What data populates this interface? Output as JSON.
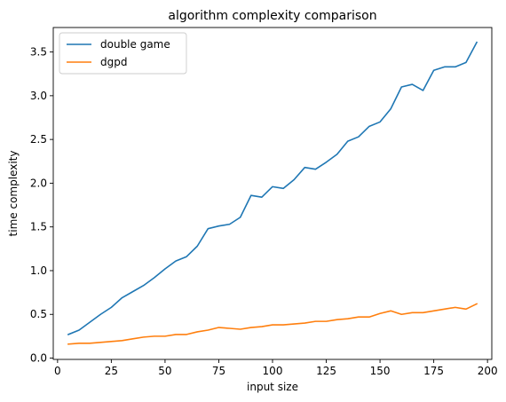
{
  "chart_data": {
    "type": "line",
    "title": "algorithm complexity comparison",
    "xlabel": "input size",
    "ylabel": "time complexity",
    "xlim": [
      -2,
      202
    ],
    "ylim": [
      -0.015,
      3.78
    ],
    "xticks": [
      0,
      25,
      50,
      75,
      100,
      125,
      150,
      175,
      200
    ],
    "yticks": [
      0.0,
      0.5,
      1.0,
      1.5,
      2.0,
      2.5,
      3.0,
      3.5
    ],
    "xtick_labels": [
      "0",
      "25",
      "50",
      "75",
      "100",
      "125",
      "150",
      "175",
      "200"
    ],
    "ytick_labels": [
      "0.0",
      "0.5",
      "1.0",
      "1.5",
      "2.0",
      "2.5",
      "3.0",
      "3.5"
    ],
    "grid": false,
    "legend_position": "top-left",
    "x": [
      5,
      10,
      15,
      20,
      25,
      30,
      35,
      40,
      45,
      50,
      55,
      60,
      65,
      70,
      75,
      80,
      85,
      90,
      95,
      100,
      105,
      110,
      115,
      120,
      125,
      130,
      135,
      140,
      145,
      150,
      155,
      160,
      165,
      170,
      175,
      180,
      185,
      190,
      195
    ],
    "series": [
      {
        "name": "double game",
        "color": "#1f77b4",
        "values": [
          0.27,
          0.32,
          0.41,
          0.5,
          0.58,
          0.69,
          0.76,
          0.83,
          0.92,
          1.02,
          1.11,
          1.16,
          1.28,
          1.48,
          1.51,
          1.53,
          1.61,
          1.86,
          1.84,
          1.96,
          1.94,
          2.04,
          2.18,
          2.16,
          2.24,
          2.33,
          2.48,
          2.53,
          2.65,
          2.7,
          2.85,
          3.1,
          3.13,
          3.06,
          3.29,
          3.33,
          3.33,
          3.38,
          3.61
        ]
      },
      {
        "name": "dgpd",
        "color": "#ff7f0e",
        "values": [
          0.16,
          0.17,
          0.17,
          0.18,
          0.19,
          0.2,
          0.22,
          0.24,
          0.25,
          0.25,
          0.27,
          0.27,
          0.3,
          0.32,
          0.35,
          0.34,
          0.33,
          0.35,
          0.36,
          0.38,
          0.38,
          0.39,
          0.4,
          0.42,
          0.42,
          0.44,
          0.45,
          0.47,
          0.47,
          0.51,
          0.54,
          0.5,
          0.52,
          0.52,
          0.54,
          0.56,
          0.58,
          0.56,
          0.62
        ]
      }
    ]
  }
}
